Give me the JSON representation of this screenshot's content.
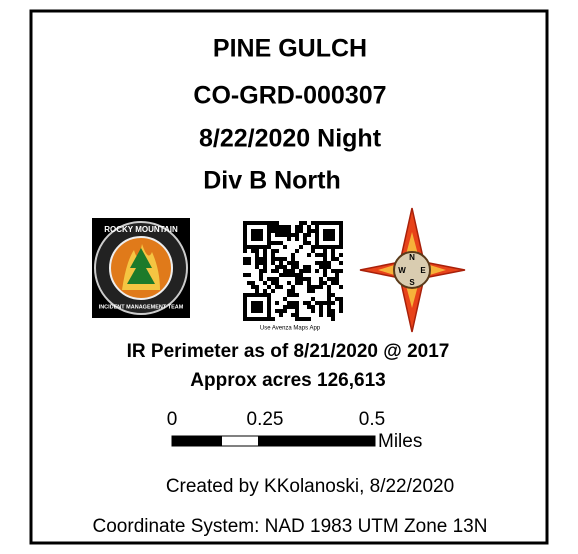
{
  "title_block": {
    "fire_name": "PINE GULCH",
    "incident_number": "CO-GRD-000307",
    "period": "8/22/2020 Night",
    "division": "Div B North",
    "logo_top_text": "ROCKY MOUNTAIN",
    "logo_bottom_text": "INCIDENT MANAGEMENT TEAM",
    "qr_caption": "Use Avenza Maps App",
    "compass_letters": [
      "N",
      "W",
      "E",
      "S"
    ],
    "perimeter": "IR Perimeter as of 8/21/2020 @ 2017",
    "acres": "Approx acres 126,613",
    "scale_labels": [
      "0",
      "0.25",
      "0.5"
    ],
    "scale_unit": "Miles",
    "created_by": "Created by KKolanoski, 8/22/2020",
    "coordinate_system": "Coordinate System: NAD 1983 UTM Zone 13N"
  }
}
